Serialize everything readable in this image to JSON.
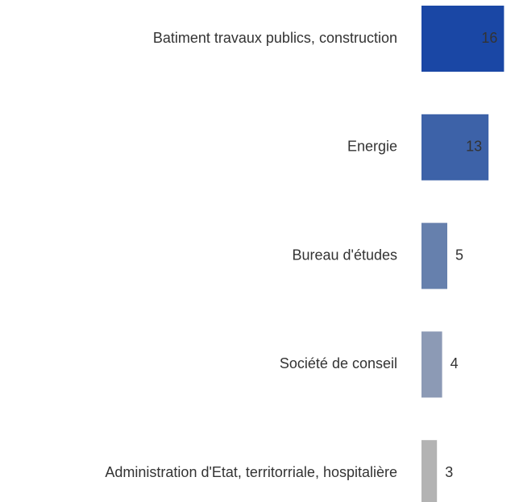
{
  "chart_data": {
    "type": "bar",
    "orientation": "horizontal",
    "categories": [
      "Batiment travaux publics, construction",
      "Energie",
      "Bureau d'études",
      "Société de conseil",
      "Administration d'Etat, territorriale, hospitalière"
    ],
    "values": [
      16,
      13,
      5,
      4,
      3
    ],
    "colors": [
      "#1a47a5",
      "#3d62a8",
      "#6680ad",
      "#8c9ab5",
      "#b3b3b3"
    ]
  }
}
